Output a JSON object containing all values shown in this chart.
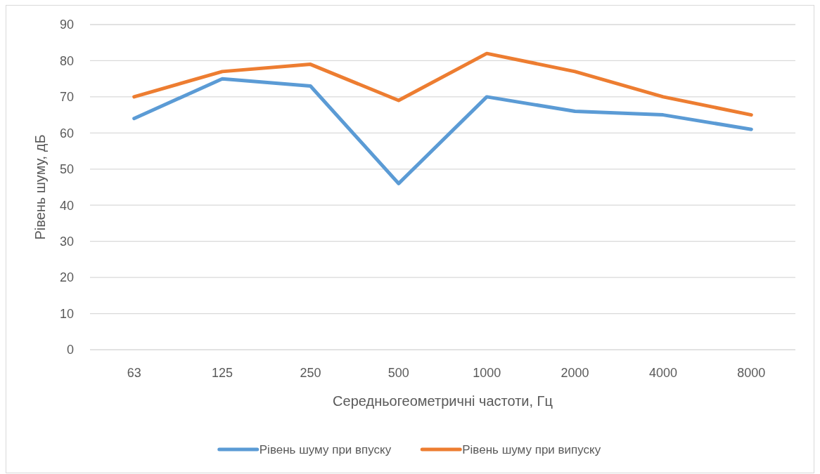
{
  "chart_data": {
    "type": "line",
    "xlabel": "Середньогеометричні частоти, Гц",
    "ylabel": "Рівень шуму, дБ",
    "categories": [
      "63",
      "125",
      "250",
      "500",
      "1000",
      "2000",
      "4000",
      "8000"
    ],
    "series": [
      {
        "name": "Рівень шуму при впуску",
        "color": "#5b9bd5",
        "values": [
          64,
          75,
          73,
          46,
          70,
          66,
          65,
          61
        ]
      },
      {
        "name": "Рівень шуму при випуску",
        "color": "#ed7d31",
        "values": [
          70,
          77,
          79,
          69,
          82,
          77,
          70,
          65
        ]
      }
    ],
    "ylim": [
      0,
      90
    ],
    "yticks": [
      0,
      10,
      20,
      30,
      40,
      50,
      60,
      70,
      80,
      90
    ],
    "grid": "y",
    "legend": "bottom"
  }
}
